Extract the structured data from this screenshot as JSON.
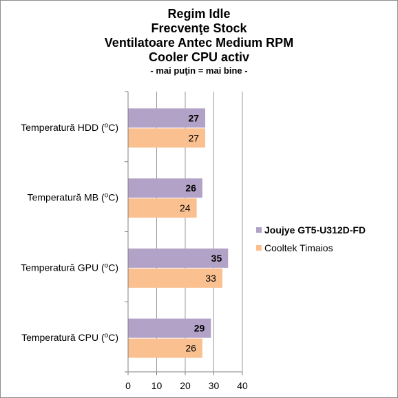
{
  "chart_data": {
    "type": "bar",
    "orientation": "horizontal",
    "title_lines": [
      "Regim Idle",
      "Frecvenţe Stock",
      "Ventilatoare Antec Medium RPM",
      "Cooler CPU activ"
    ],
    "subtitle": "- mai puţin = mai bine -",
    "categories": [
      "Temperatură  HDD (",
      "Temperatură  MB (",
      "Temperatură  GPU (",
      "Temperatură  CPU ("
    ],
    "category_superscript": "o",
    "category_suffix": "C)",
    "series": [
      {
        "name": "Joujye GT5-U312D-FD",
        "values": [
          27,
          26,
          35,
          29
        ],
        "color": "#b3a2c7",
        "label_bold": true
      },
      {
        "name": "Cooltek Timaios",
        "values": [
          27,
          24,
          33,
          26
        ],
        "color": "#fac090",
        "label_bold": false
      }
    ],
    "xlim": [
      0,
      40
    ],
    "xticks": [
      0,
      10,
      20,
      30,
      40
    ],
    "grid": true,
    "legend_position": "right"
  }
}
